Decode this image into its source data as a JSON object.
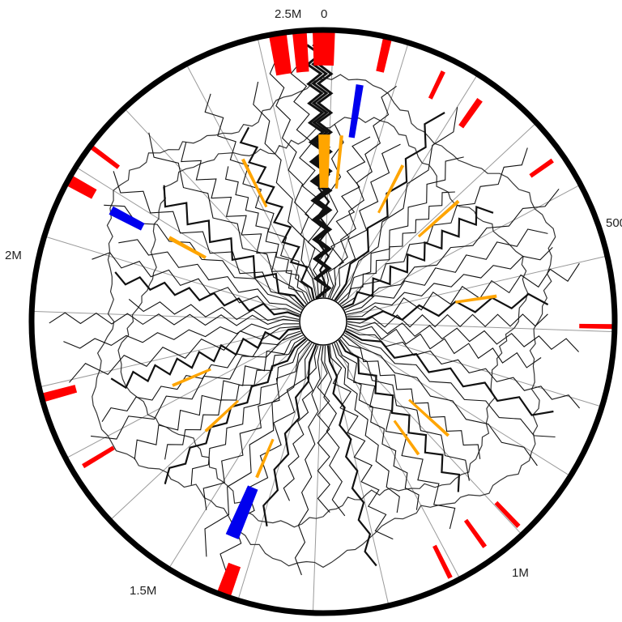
{
  "labels": {
    "zero": "0",
    "five_hundred_k": "500",
    "one_m": "1M",
    "one_five_m": "1.5M",
    "two_m": "2M",
    "two_five_m": "2.5M"
  },
  "genome": {
    "total_length": 2700000,
    "start_offset_deg": 0
  },
  "colors": {
    "outer_ring": "#000000",
    "radial_line": "#9a9a9a",
    "zigzag": "#111111",
    "contour": "#333333",
    "red_feature": "#ff0000",
    "blue_feature": "#0000ee",
    "orange_feature": "#ffa500"
  },
  "features": {
    "red": [
      {
        "pos": 2620000,
        "len": 25000,
        "rin": 0.86,
        "rout": 0.99
      },
      {
        "pos": 2655000,
        "len": 20000,
        "rin": 0.86,
        "rout": 0.99
      },
      {
        "pos": 2685000,
        "len": 32000,
        "rin": 0.88,
        "rout": 1.0
      },
      {
        "pos": 90000,
        "len": 12000,
        "rin": 0.88,
        "rout": 1.0
      },
      {
        "pos": 190000,
        "len": 5000,
        "rin": 0.85,
        "rout": 0.95
      },
      {
        "pos": 260000,
        "len": 9000,
        "rin": 0.82,
        "rout": 0.93
      },
      {
        "pos": 410000,
        "len": 4000,
        "rin": 0.87,
        "rout": 0.96
      },
      {
        "pos": 680000,
        "len": 5000,
        "rin": 0.88,
        "rout": 1.0
      },
      {
        "pos": 1020000,
        "len": 5000,
        "rin": 0.86,
        "rout": 0.97
      },
      {
        "pos": 1080000,
        "len": 5000,
        "rin": 0.84,
        "rout": 0.95
      },
      {
        "pos": 1150000,
        "len": 4000,
        "rin": 0.86,
        "rout": 0.98
      },
      {
        "pos": 1490000,
        "len": 20000,
        "rin": 0.89,
        "rout": 1.0
      },
      {
        "pos": 1790000,
        "len": 4000,
        "rin": 0.84,
        "rout": 0.96
      },
      {
        "pos": 1905000,
        "len": 12000,
        "rin": 0.88,
        "rout": 0.99
      },
      {
        "pos": 2235000,
        "len": 16000,
        "rin": 0.9,
        "rout": 1.0
      },
      {
        "pos": 2300000,
        "len": 5000,
        "rin": 0.88,
        "rout": 0.99
      }
    ],
    "blue": [
      {
        "pos": 60000,
        "len": 12000,
        "rin": 0.64,
        "rout": 0.82
      },
      {
        "pos": 1510000,
        "len": 24000,
        "rin": 0.62,
        "rout": 0.8
      },
      {
        "pos": 2225000,
        "len": 15000,
        "rin": 0.7,
        "rout": 0.82
      }
    ],
    "orange": [
      {
        "pos": 2690000,
        "len": 25000,
        "rin": 0.46,
        "rout": 0.64
      },
      {
        "pos": 40000,
        "len": 5000,
        "rin": 0.46,
        "rout": 0.64
      },
      {
        "pos": 200000,
        "len": 5000,
        "rin": 0.42,
        "rout": 0.6
      },
      {
        "pos": 360000,
        "len": 5000,
        "rin": 0.44,
        "rout": 0.62
      },
      {
        "pos": 610000,
        "len": 5000,
        "rin": 0.46,
        "rout": 0.6
      },
      {
        "pos": 990000,
        "len": 5000,
        "rin": 0.4,
        "rout": 0.58
      },
      {
        "pos": 1080000,
        "len": 5000,
        "rin": 0.42,
        "rout": 0.56
      },
      {
        "pos": 1520000,
        "len": 6000,
        "rin": 0.44,
        "rout": 0.58
      },
      {
        "pos": 1700000,
        "len": 5000,
        "rin": 0.4,
        "rout": 0.55
      },
      {
        "pos": 1850000,
        "len": 5000,
        "rin": 0.42,
        "rout": 0.56
      },
      {
        "pos": 2235000,
        "len": 8000,
        "rin": 0.46,
        "rout": 0.6
      },
      {
        "pos": 2500000,
        "len": 5000,
        "rin": 0.44,
        "rout": 0.62
      }
    ]
  }
}
